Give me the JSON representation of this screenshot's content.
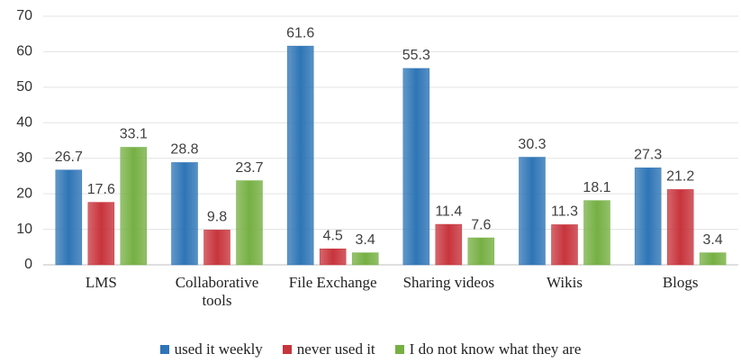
{
  "chart_data": {
    "type": "bar",
    "categories": [
      "LMS",
      "Collaborative tools",
      "File Exchange",
      "Sharing videos",
      "Wikis",
      "Blogs"
    ],
    "series": [
      {
        "name": "used it weekly",
        "color": "#2e75b6",
        "values": [
          26.7,
          28.8,
          61.6,
          55.3,
          30.3,
          27.3
        ]
      },
      {
        "name": "never used it",
        "color": "#c8343c",
        "values": [
          17.6,
          9.8,
          4.5,
          11.4,
          11.3,
          21.2
        ]
      },
      {
        "name": "I do not know what they are",
        "color": "#76b043",
        "values": [
          33.1,
          23.7,
          3.4,
          7.6,
          18.1,
          3.4
        ]
      }
    ],
    "ylim": [
      0,
      70
    ],
    "yticks": [
      0,
      10,
      20,
      30,
      40,
      50,
      60,
      70
    ],
    "grid": true,
    "legend": "bottom"
  }
}
